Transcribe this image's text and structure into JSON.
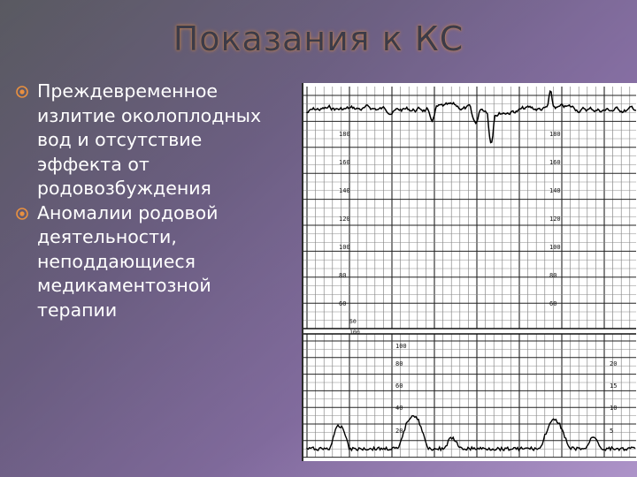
{
  "slide": {
    "title": "Показания к КС",
    "bullets": [
      "Преждевременное излитие околоплодных вод и отсутствие эффекта от родовозбуждения",
      "Аномалии родовой деятельности, неподдающиеся медикаментозной терапии"
    ],
    "bullet_icon": "target-circle-icon"
  },
  "ctg": {
    "upper_ticks_left": [
      "180",
      "160",
      "140",
      "120",
      "100",
      "80",
      "60"
    ],
    "upper_ticks_right": [
      "180",
      "160",
      "140",
      "120",
      "100",
      "80",
      "60"
    ],
    "lower_ticks_mid": [
      "100",
      "80",
      "60",
      "40",
      "20"
    ],
    "lower_ticks_right": [
      "20",
      "15",
      "10",
      "5"
    ],
    "divider_left_labels": [
      "50",
      "100"
    ]
  }
}
